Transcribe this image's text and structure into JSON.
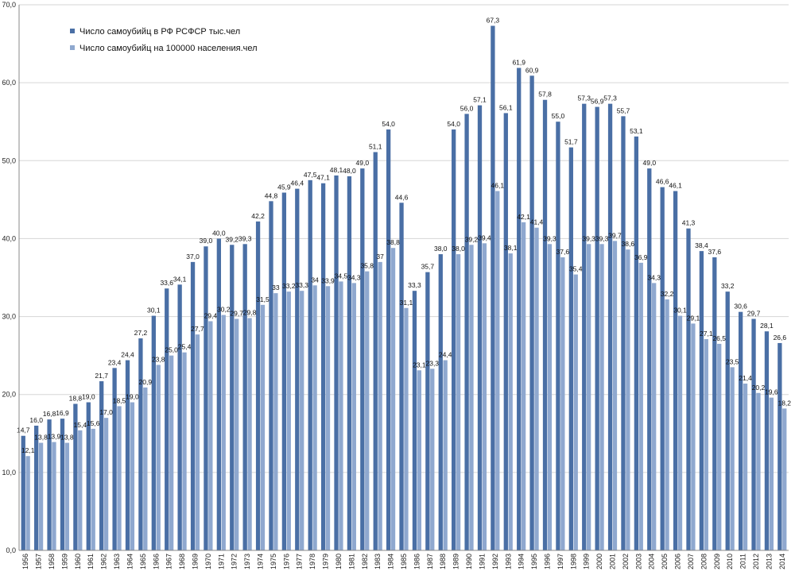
{
  "chart_data": {
    "type": "bar",
    "title": "",
    "xlabel": "",
    "ylabel": "",
    "ylim": [
      0,
      70
    ],
    "ytick_step": 10,
    "ytick_labels": [
      "0,0",
      "10,0",
      "20,0",
      "30,0",
      "40,0",
      "50,0",
      "60,0",
      "70,0"
    ],
    "grid": true,
    "legend_position": "top-left",
    "categories": [
      "1956",
      "1957",
      "1958",
      "1959",
      "1960",
      "1961",
      "1962",
      "1963",
      "1964",
      "1965",
      "1966",
      "1967",
      "1968",
      "1969",
      "1970",
      "1971",
      "1972",
      "1973",
      "1974",
      "1975",
      "1976",
      "1977",
      "1978",
      "1979",
      "1980",
      "1981",
      "1982",
      "1983",
      "1984",
      "1985",
      "1986",
      "1987",
      "1988",
      "1989",
      "1990",
      "1991",
      "1992",
      "1993",
      "1994",
      "1995",
      "1996",
      "1997",
      "1998",
      "1999",
      "2000",
      "2001",
      "2002",
      "2003",
      "2004",
      "2005",
      "2006",
      "2007",
      "2008",
      "2009",
      "2010",
      "2011",
      "2012",
      "2013",
      "2014"
    ],
    "series": [
      {
        "name": "Число самоубийц в РФ РСФСР тыс.чел",
        "color": "#4a6fa5",
        "values": [
          14.7,
          16.0,
          16.8,
          16.9,
          18.8,
          19.0,
          21.7,
          23.4,
          24.4,
          27.2,
          30.1,
          33.6,
          34.1,
          37.0,
          39.0,
          40.0,
          39.2,
          39.3,
          42.2,
          44.8,
          45.9,
          46.4,
          47.5,
          47.1,
          48.1,
          48.0,
          49.0,
          51.1,
          54.0,
          44.6,
          33.3,
          35.7,
          38.0,
          54.0,
          56.0,
          57.1,
          67.3,
          56.1,
          61.9,
          60.9,
          57.8,
          55.0,
          51.7,
          57.3,
          56.9,
          57.3,
          55.7,
          53.1,
          49.0,
          46.6,
          46.1,
          41.3,
          38.4,
          37.6,
          33.2,
          30.6,
          29.7,
          28.1,
          26.6
        ],
        "labels": [
          "14,7",
          "16,0",
          "16,8",
          "16,9",
          "18,8",
          "19,0",
          "21,7",
          "23,4",
          "24,4",
          "27,2",
          "30,1",
          "33,6",
          "34,1",
          "37,0",
          "39,0",
          "40,0",
          "39,2",
          "39,3",
          "42,2",
          "44,8",
          "45,9",
          "46,4",
          "47,5",
          "47,1",
          "48,1",
          "48,0",
          "49,0",
          "51,1",
          "54,0",
          "44,6",
          "33,3",
          "35,7",
          "38,0",
          "54,0",
          "56,0",
          "57,1",
          "67,3",
          "56,1",
          "61,9",
          "60,9",
          "57,8",
          "55,0",
          "51,7",
          "57,3",
          "56,9",
          "57,3",
          "55,7",
          "53,1",
          "49,0",
          "46,6",
          "46,1",
          "41,3",
          "38,4",
          "37,6",
          "33,2",
          "30,6",
          "29,7",
          "28,1",
          "26,6"
        ]
      },
      {
        "name": "Число самоубийц на 100000  населения.чел",
        "color": "#8fa8cf",
        "values": [
          12.1,
          13.8,
          13.9,
          13.8,
          15.4,
          15.6,
          17.0,
          18.5,
          19.0,
          20.9,
          23.8,
          25.0,
          25.4,
          27.7,
          29.4,
          30.2,
          29.7,
          29.8,
          31.5,
          33.0,
          33.2,
          33.3,
          34.0,
          33.9,
          34.5,
          34.3,
          35.8,
          37.0,
          38.8,
          31.1,
          23.1,
          23.3,
          24.4,
          38.0,
          39.2,
          39.4,
          46.1,
          38.1,
          42.1,
          41.4,
          39.3,
          37.6,
          35.4,
          39.3,
          39.3,
          39.7,
          38.6,
          36.9,
          34.3,
          32.2,
          30.1,
          29.1,
          27.1,
          26.5,
          23.5,
          21.4,
          20.2,
          19.6,
          18.2
        ],
        "labels": [
          "12,1",
          "13,8",
          "13,9",
          "13,8",
          "15,4",
          "15,6",
          "17,0",
          "18,5",
          "19,0",
          "20,9",
          "23,8",
          "25,0",
          "25,4",
          "27,7",
          "29,4",
          "30,2",
          "29,7",
          "29,8",
          "31,5",
          "33",
          "33,2",
          "33,3",
          "34",
          "33,9",
          "34,5",
          "34,3",
          "35,8",
          "37",
          "38,8",
          "31,1",
          "23,1",
          "23,3",
          "24,4",
          "38,0",
          "39,2",
          "39,4",
          "46,1",
          "38,1",
          "42,1",
          "41,4",
          "39,3",
          "37,6",
          "35,4",
          "39,3",
          "39,3",
          "39,7",
          "38,6",
          "36,9",
          "34,3",
          "32,2",
          "30,1",
          "29,1",
          "27,1",
          "26,5",
          "23,5",
          "21,4",
          "20,2",
          "19,6",
          "18,2"
        ]
      }
    ]
  }
}
